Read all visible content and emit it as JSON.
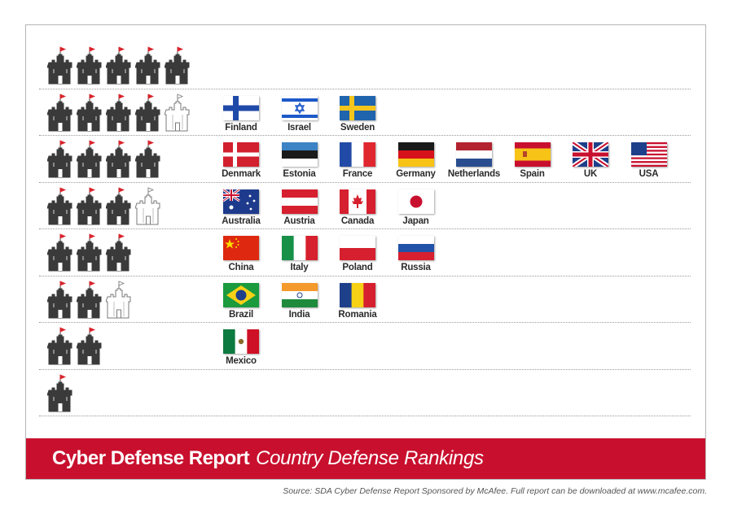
{
  "chart_data": {
    "type": "table",
    "title": "Cyber Defense Report",
    "subtitle": "Country Defense Rankings",
    "max_rating": 5,
    "rows": [
      {
        "rating": 5,
        "countries": []
      },
      {
        "rating": 4.5,
        "countries": [
          "Finland",
          "Israel",
          "Sweden"
        ]
      },
      {
        "rating": 4,
        "countries": [
          "Denmark",
          "Estonia",
          "France",
          "Germany",
          "Netherlands",
          "Spain",
          "UK",
          "USA"
        ]
      },
      {
        "rating": 3.5,
        "countries": [
          "Australia",
          "Austria",
          "Canada",
          "Japan"
        ]
      },
      {
        "rating": 3,
        "countries": [
          "China",
          "Italy",
          "Poland",
          "Russia"
        ]
      },
      {
        "rating": 2.5,
        "countries": [
          "Brazil",
          "India",
          "Romania"
        ]
      },
      {
        "rating": 2,
        "countries": [
          "Mexico"
        ]
      },
      {
        "rating": 1,
        "countries": []
      }
    ],
    "source": "Source: SDA Cyber Defense Report Sponsored by McAfee. Full report can be downloaded at www.mcafee.com."
  },
  "colors": {
    "banner": "#c8102e",
    "castle_full": "#3a3a3a",
    "castle_flag": "#d9252d"
  },
  "icons": {
    "rating_unit": "castle-icon",
    "half_rating_unit": "castle-outline-icon"
  }
}
